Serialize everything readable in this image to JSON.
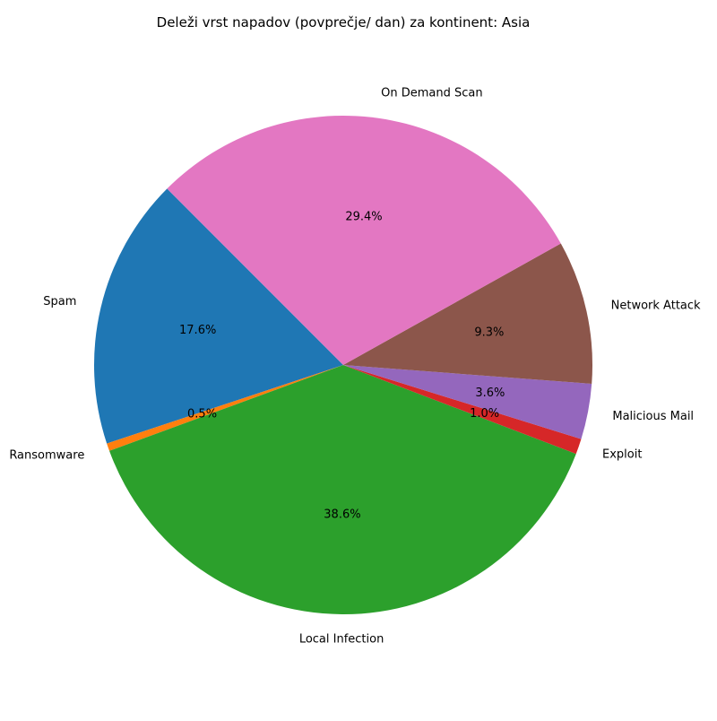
{
  "chart_data": {
    "type": "pie",
    "title": "Deleži vrst napadov (povprečje/ dan) za kontinent: Asia",
    "start_angle_deg": 135,
    "direction": "counterclockwise",
    "slices": [
      {
        "label": "Spam",
        "value": 17.6,
        "pct_label": "17.6%",
        "color": "#1f77b4"
      },
      {
        "label": "Ransomware",
        "value": 0.5,
        "pct_label": "0.5%",
        "color": "#ff7f0e"
      },
      {
        "label": "Local Infection",
        "value": 38.6,
        "pct_label": "38.6%",
        "color": "#2ca02c"
      },
      {
        "label": "Exploit",
        "value": 1.0,
        "pct_label": "1.0%",
        "color": "#d62728"
      },
      {
        "label": "Malicious Mail",
        "value": 3.6,
        "pct_label": "3.6%",
        "color": "#9467bd"
      },
      {
        "label": "Network Attack",
        "value": 9.3,
        "pct_label": "9.3%",
        "color": "#8c564b"
      },
      {
        "label": "On Demand Scan",
        "value": 29.4,
        "pct_label": "29.4%",
        "color": "#e377c2"
      }
    ]
  }
}
